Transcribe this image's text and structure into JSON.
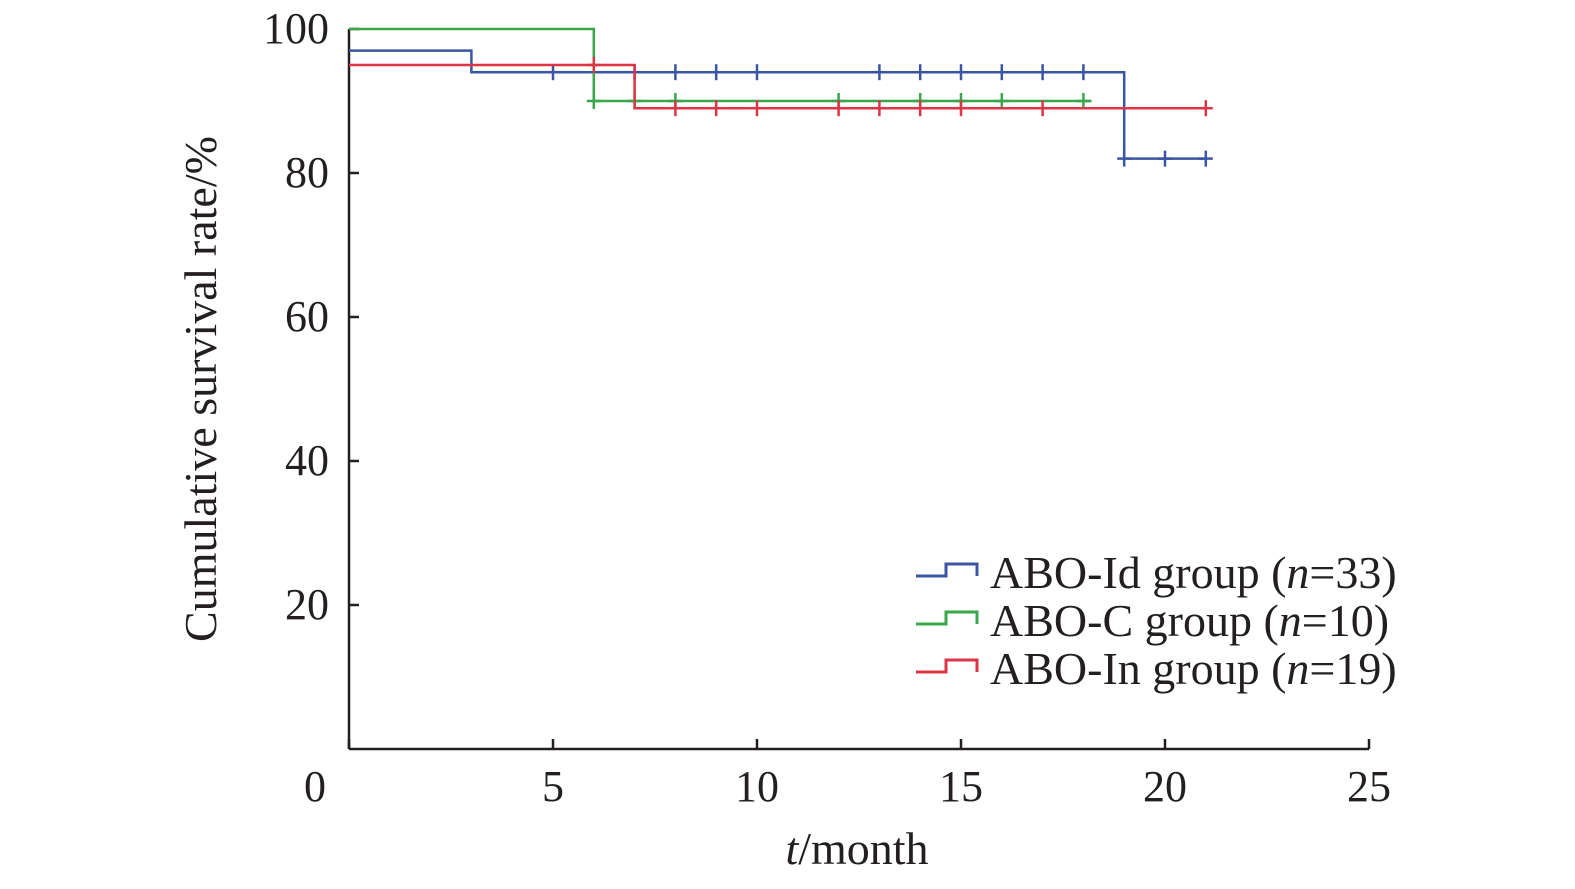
{
  "chart_data": {
    "type": "line",
    "subtype": "kaplan-meier step",
    "title": "",
    "xlabel_italic": "t",
    "xlabel_rest": "/month",
    "ylabel": "Cumulative survival rate/%",
    "xlim": [
      0,
      25
    ],
    "ylim": [
      0,
      100
    ],
    "x_ticks": [
      0,
      5,
      10,
      15,
      20,
      25
    ],
    "y_ticks": [
      20,
      40,
      60,
      80,
      100
    ],
    "x_tick_labels": [
      "0",
      "5",
      "10",
      "15",
      "20",
      "25"
    ],
    "y_tick_labels": [
      "20",
      "40",
      "60",
      "80",
      "100"
    ],
    "grid": false,
    "legend_position": "bottom-right",
    "series": [
      {
        "name": "ABO-Id group",
        "legend_prefix": "ABO-Id group (",
        "legend_n_label": "n",
        "legend_n_value": "=33)",
        "color": "#3a55a4",
        "steps": [
          [
            0,
            97
          ],
          [
            3,
            94
          ],
          [
            19,
            82
          ],
          [
            21,
            82
          ]
        ],
        "censored_x": [
          5,
          7,
          8,
          9,
          10,
          13,
          14,
          15,
          16,
          17,
          18,
          19,
          20,
          21
        ]
      },
      {
        "name": "ABO-C group",
        "legend_prefix": "ABO-C group (",
        "legend_n_label": "n",
        "legend_n_value": "=10)",
        "color": "#3aa64a",
        "steps": [
          [
            0,
            100
          ],
          [
            6,
            90
          ],
          [
            18.2,
            90
          ]
        ],
        "censored_x": [
          6,
          7,
          8,
          12,
          14,
          15,
          16,
          18
        ]
      },
      {
        "name": "ABO-In group",
        "legend_prefix": "ABO-In group (",
        "legend_n_label": "n",
        "legend_n_value": "=19)",
        "color": "#dc3545",
        "steps": [
          [
            0,
            95
          ],
          [
            7,
            89
          ],
          [
            21,
            89
          ]
        ],
        "censored_x": [
          6,
          8,
          9,
          10,
          12,
          13,
          14,
          15,
          17,
          21
        ]
      }
    ]
  }
}
